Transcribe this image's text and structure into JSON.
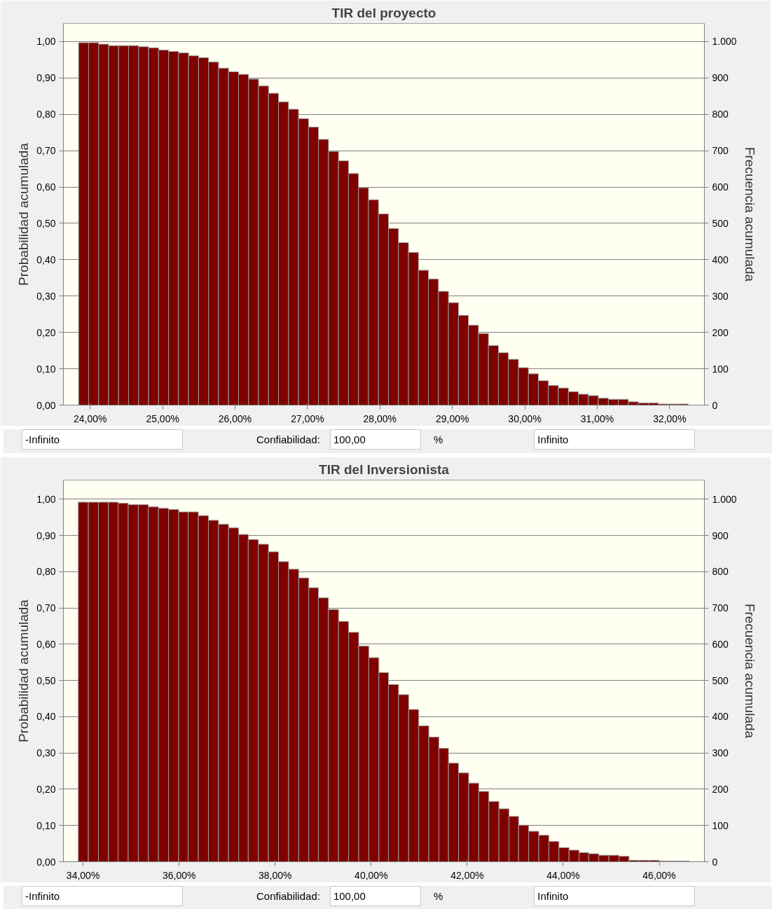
{
  "chart_data": [
    {
      "type": "histogram",
      "title": "TIR del proyecto",
      "ylabel": "Probabilidad acumulada",
      "y2label": "Frecuencia acumulada",
      "color": "#800000",
      "bins": [
        23.84,
        23.978,
        24.116,
        24.254,
        24.392,
        24.53,
        24.668,
        24.806,
        24.944,
        25.082,
        25.22,
        25.358,
        25.496,
        25.634,
        25.772,
        25.91,
        26.048,
        26.186,
        26.324,
        26.462,
        26.6,
        26.738,
        26.876,
        27.014,
        27.152,
        27.29,
        27.428,
        27.566,
        27.704,
        27.842,
        27.98,
        28.118,
        28.256,
        28.394,
        28.532,
        28.67,
        28.808,
        28.946,
        29.084,
        29.222,
        29.36,
        29.498,
        29.636,
        29.774,
        29.912,
        30.05,
        30.188,
        30.326,
        30.464,
        30.602,
        30.74,
        30.878,
        31.016,
        31.154,
        31.292,
        31.43,
        31.568,
        31.706,
        31.844,
        31.982,
        32.12,
        32.258
      ],
      "values": [
        0.997,
        0.997,
        0.993,
        0.989,
        0.989,
        0.989,
        0.986,
        0.983,
        0.977,
        0.973,
        0.969,
        0.961,
        0.956,
        0.944,
        0.927,
        0.917,
        0.91,
        0.897,
        0.878,
        0.858,
        0.834,
        0.814,
        0.788,
        0.765,
        0.731,
        0.698,
        0.672,
        0.637,
        0.598,
        0.565,
        0.526,
        0.486,
        0.447,
        0.42,
        0.371,
        0.347,
        0.313,
        0.282,
        0.247,
        0.22,
        0.197,
        0.164,
        0.144,
        0.126,
        0.103,
        0.086,
        0.067,
        0.054,
        0.047,
        0.037,
        0.03,
        0.026,
        0.019,
        0.016,
        0.016,
        0.009,
        0.006,
        0.006,
        0.003,
        0.003,
        0.003
      ],
      "xlim": [
        23.63,
        32.48
      ],
      "ylim": [
        0,
        1.05
      ],
      "y2lim": [
        0,
        1050
      ],
      "xticks": [
        {
          "value": 24,
          "label": "24,00%"
        },
        {
          "value": 25,
          "label": "25,00%"
        },
        {
          "value": 26,
          "label": "26,00%"
        },
        {
          "value": 27,
          "label": "27,00%"
        },
        {
          "value": 28,
          "label": "28,00%"
        },
        {
          "value": 29,
          "label": "29,00%"
        },
        {
          "value": 30,
          "label": "30,00%"
        },
        {
          "value": 31,
          "label": "31,00%"
        },
        {
          "value": 32,
          "label": "32,00%"
        }
      ],
      "yticks": [
        {
          "value": 0,
          "label": "0,00"
        },
        {
          "value": 0.1,
          "label": "0,10"
        },
        {
          "value": 0.2,
          "label": "0,20"
        },
        {
          "value": 0.3,
          "label": "0,30"
        },
        {
          "value": 0.4,
          "label": "0,40"
        },
        {
          "value": 0.5,
          "label": "0,50"
        },
        {
          "value": 0.6,
          "label": "0,60"
        },
        {
          "value": 0.7,
          "label": "0,70"
        },
        {
          "value": 0.8,
          "label": "0,80"
        },
        {
          "value": 0.9,
          "label": "0,90"
        },
        {
          "value": 1,
          "label": "1,00"
        }
      ],
      "y2ticks": [
        0,
        100,
        200,
        300,
        400,
        500,
        600,
        700,
        800,
        900,
        {
          "value": 1000,
          "label": "1.000"
        }
      ],
      "grid": "y",
      "annotations": [
        "-Infinito",
        "Confiabilidad:",
        "100,00",
        "%",
        "Infinito"
      ]
    },
    {
      "type": "histogram",
      "title": "TIR del Inversionista",
      "ylabel": "Probabilidad acumulada",
      "y2label": "Frecuencia acumulada",
      "color": "#800000",
      "bins": [
        33.9,
        34.11,
        34.32,
        34.53,
        34.73,
        34.94,
        35.15,
        35.36,
        35.57,
        35.78,
        35.99,
        36.19,
        36.4,
        36.61,
        36.82,
        37.03,
        37.24,
        37.44,
        37.65,
        37.86,
        38.07,
        38.28,
        38.49,
        38.7,
        38.9,
        39.11,
        39.32,
        39.53,
        39.74,
        39.95,
        40.16,
        40.36,
        40.57,
        40.78,
        40.99,
        41.2,
        41.41,
        41.61,
        41.82,
        42.03,
        42.24,
        42.45,
        42.66,
        42.87,
        43.07,
        43.28,
        43.49,
        43.7,
        43.91,
        44.12,
        44.33,
        44.53,
        44.74,
        44.95,
        45.16,
        45.37,
        45.58,
        45.78,
        45.99,
        46.2,
        46.41,
        46.62
      ],
      "values": [
        0.992,
        0.992,
        0.992,
        0.992,
        0.989,
        0.985,
        0.985,
        0.979,
        0.975,
        0.972,
        0.965,
        0.965,
        0.955,
        0.942,
        0.931,
        0.921,
        0.903,
        0.889,
        0.876,
        0.855,
        0.828,
        0.807,
        0.783,
        0.756,
        0.728,
        0.696,
        0.663,
        0.633,
        0.595,
        0.563,
        0.522,
        0.489,
        0.461,
        0.42,
        0.375,
        0.344,
        0.313,
        0.272,
        0.245,
        0.217,
        0.194,
        0.166,
        0.146,
        0.125,
        0.101,
        0.084,
        0.073,
        0.056,
        0.039,
        0.032,
        0.025,
        0.022,
        0.018,
        0.018,
        0.015,
        0.004,
        0.004,
        0.004,
        0.002,
        0.002,
        0.002
      ],
      "xlim": [
        33.59,
        46.94
      ],
      "ylim": [
        0,
        1.053
      ],
      "y2lim": [
        0,
        1053
      ],
      "xticks": [
        {
          "value": 34,
          "label": "34,00%"
        },
        {
          "value": 36,
          "label": "36,00%"
        },
        {
          "value": 38,
          "label": "38,00%"
        },
        {
          "value": 40,
          "label": "40,00%"
        },
        {
          "value": 42,
          "label": "42,00%"
        },
        {
          "value": 44,
          "label": "44,00%"
        },
        {
          "value": 46,
          "label": "46,00%"
        }
      ],
      "yticks": [
        {
          "value": 0,
          "label": "0,00"
        },
        {
          "value": 0.1,
          "label": "0,10"
        },
        {
          "value": 0.2,
          "label": "0,20"
        },
        {
          "value": 0.3,
          "label": "0,30"
        },
        {
          "value": 0.4,
          "label": "0,40"
        },
        {
          "value": 0.5,
          "label": "0,50"
        },
        {
          "value": 0.6,
          "label": "0,60"
        },
        {
          "value": 0.7,
          "label": "0,70"
        },
        {
          "value": 0.8,
          "label": "0,80"
        },
        {
          "value": 0.9,
          "label": "0,90"
        },
        {
          "value": 1,
          "label": "1,00"
        }
      ],
      "y2ticks": [
        0,
        100,
        200,
        300,
        400,
        500,
        600,
        700,
        800,
        900,
        {
          "value": 1000,
          "label": "1.000"
        }
      ],
      "grid": "y",
      "annotations": [
        "-Infinito",
        "Confiabilidad:",
        "100,00",
        "%",
        "Infinito"
      ]
    }
  ]
}
